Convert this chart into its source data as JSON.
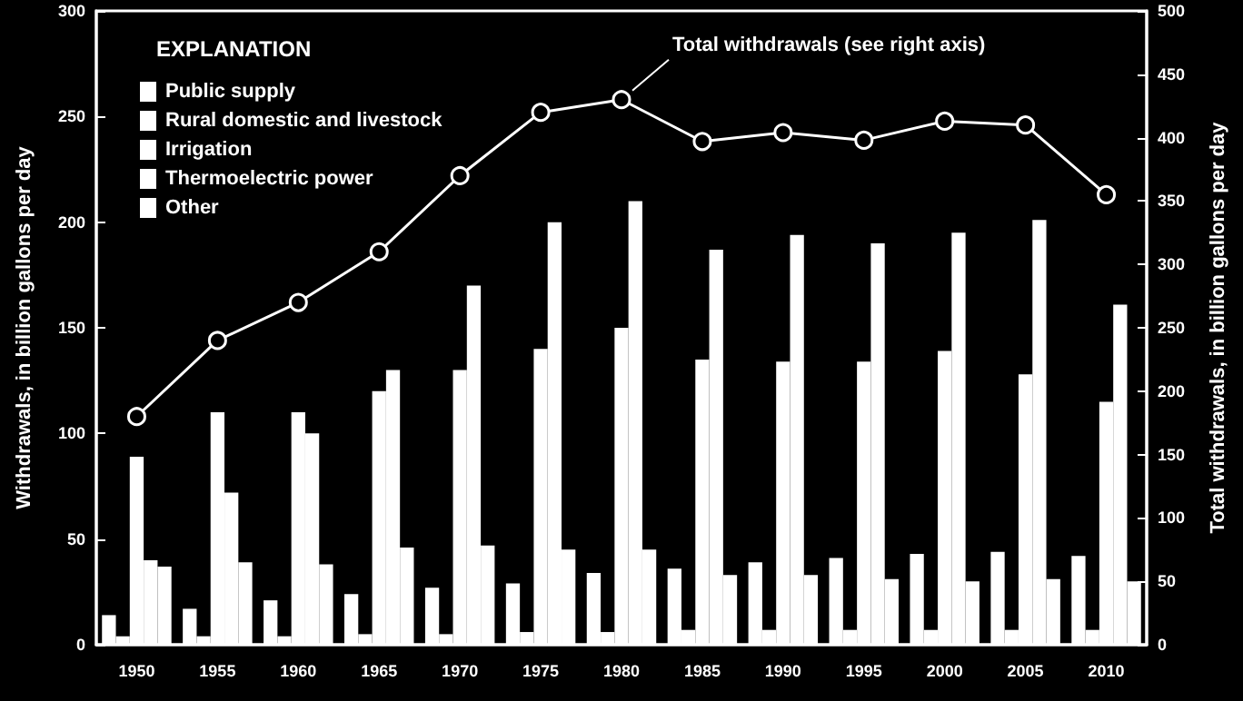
{
  "chart_data": {
    "type": "bar",
    "xlabel": null,
    "ylabel": "Withdrawals, in billion gallons per day",
    "y2label": "Total withdrawals, in billion gallons per day",
    "legend_title": "EXPLANATION",
    "categories": [
      "1950",
      "1955",
      "1960",
      "1965",
      "1970",
      "1975",
      "1980",
      "1985",
      "1990",
      "1995",
      "2000",
      "2005",
      "2010"
    ],
    "series": [
      {
        "name": "Public supply",
        "color": "#ffffff",
        "values": [
          14,
          17,
          21,
          24,
          27,
          29,
          34,
          36,
          39,
          41,
          43,
          44,
          42
        ]
      },
      {
        "name": "Rural domestic and livestock",
        "color": "#ffffff",
        "values": [
          4,
          4,
          4,
          5,
          5,
          6,
          6,
          7,
          7,
          7,
          7,
          7,
          7
        ]
      },
      {
        "name": "Irrigation",
        "color": "#ffffff",
        "values": [
          89,
          110,
          110,
          120,
          130,
          140,
          150,
          135,
          134,
          134,
          139,
          128,
          115
        ]
      },
      {
        "name": "Thermoelectric power",
        "color": "#ffffff",
        "values": [
          40,
          72,
          100,
          130,
          170,
          200,
          210,
          187,
          194,
          190,
          195,
          201,
          161
        ]
      },
      {
        "name": "Other",
        "color": "#ffffff",
        "values": [
          37,
          39,
          38,
          46,
          47,
          45,
          45,
          33,
          33,
          31,
          30,
          31,
          30
        ]
      },
      {
        "type": "line",
        "name": "Total withdrawals (see right axis)",
        "axis": "y2",
        "color": "#ffffff",
        "marker": "circle",
        "values": [
          180,
          240,
          270,
          310,
          370,
          420,
          430,
          397,
          404,
          398,
          413,
          410,
          355
        ]
      }
    ],
    "ylim": [
      0,
      300
    ],
    "yticks": [
      0,
      50,
      100,
      150,
      200,
      250,
      300
    ],
    "y2lim": [
      0,
      500
    ],
    "y2ticks": [
      0,
      50,
      100,
      150,
      200,
      250,
      300,
      350,
      400,
      450,
      500
    ],
    "grid": false,
    "legend": "top left"
  }
}
